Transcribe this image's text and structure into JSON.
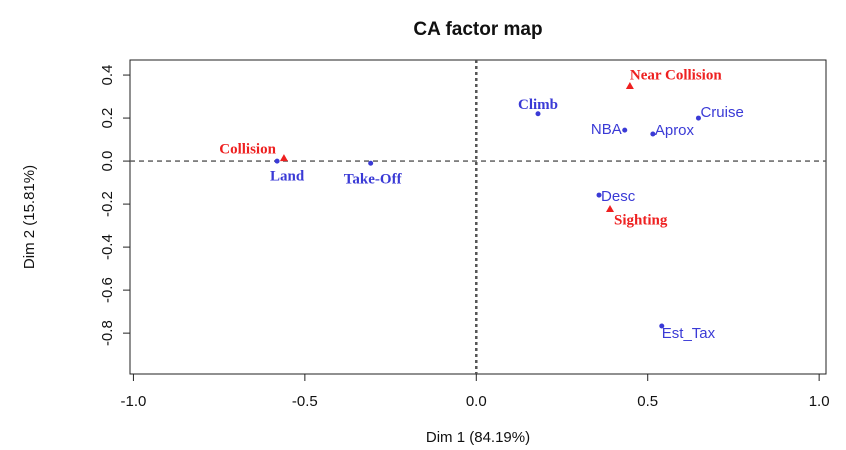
{
  "chart_data": {
    "type": "scatter",
    "title": "CA factor map",
    "x_label": "Dim 1 (84.19%)",
    "y_label": "Dim 2 (15.81%)",
    "xlim": [
      -1.01,
      1.02
    ],
    "ylim": [
      -0.99,
      0.47
    ],
    "xticks": [
      {
        "value": -1.0,
        "label": "-1.0"
      },
      -0.5,
      {
        "value": 0.0,
        "label": "0.0"
      },
      0.5,
      {
        "value": 1.0,
        "label": "1.0"
      }
    ],
    "yticks": [
      -0.8,
      -0.6,
      -0.4,
      -0.2,
      {
        "value": 0.0,
        "label": "0.0"
      },
      0.2,
      0.4
    ],
    "hlines": [
      0
    ],
    "vlines": [
      0
    ],
    "series": [
      {
        "color": "#ee2020",
        "marker": "triangle",
        "labels": [
          "Near Collision",
          "Collision",
          "Sighting"
        ],
        "x": [
          0.448,
          -0.561,
          0.39
        ],
        "values": [
          0.349,
          0.014,
          -0.223
        ]
      },
      {
        "color": "#3a3ad6",
        "marker": "circle",
        "labels": [
          "Climb",
          "Cruise",
          "NBA",
          "Aprox",
          "Land",
          "Take-Off",
          "Desc",
          "Est_Tax"
        ],
        "x": [
          0.18,
          0.648,
          0.433,
          0.515,
          -0.581,
          -0.308,
          0.358,
          0.541
        ],
        "values": [
          0.22,
          0.2,
          0.144,
          0.126,
          0.0,
          -0.01,
          -0.158,
          -0.767
        ]
      }
    ]
  }
}
